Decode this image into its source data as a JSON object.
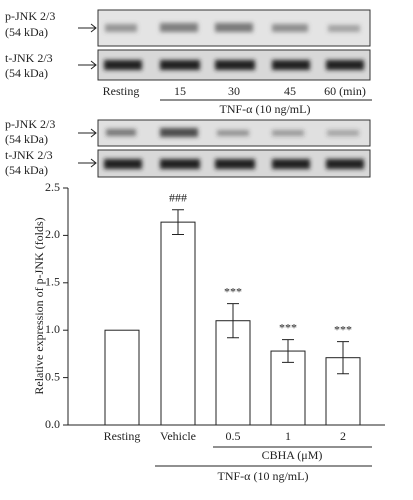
{
  "blots": [
    {
      "rows": [
        {
          "label": "p-JNK 2/3",
          "size": "(54 kDa)"
        },
        {
          "label": "t-JNK 2/3",
          "size": "(54 kDa)"
        }
      ],
      "lanes": [
        "Resting",
        "15",
        "30",
        "45",
        "60 (min)"
      ],
      "treatment": "TNF-α (10 ng/mL)"
    },
    {
      "rows": [
        {
          "label": "p-JNK 2/3",
          "size": "(54 kDa)"
        },
        {
          "label": "t-JNK 2/3",
          "size": "(54 kDa)"
        }
      ]
    }
  ],
  "chart_data": {
    "type": "bar",
    "y_label": "Relative expression of p-JNK (folds)",
    "categories": [
      "Resting",
      "Vehicle",
      "0.5",
      "1",
      "2"
    ],
    "values": [
      1.0,
      2.14,
      1.1,
      0.78,
      0.71
    ],
    "errors": [
      0,
      0.13,
      0.18,
      0.12,
      0.17
    ],
    "annotations": [
      null,
      "###",
      "***",
      "***",
      "***"
    ],
    "group_label": "CBHA (μM)",
    "treatment_label": "TNF-α (10 ng/mL)",
    "color": "#ffffff",
    "ylim": [
      0,
      2.5
    ],
    "yticks": [
      {
        "value": 0,
        "label": "0.0"
      },
      0.5,
      {
        "value": 1,
        "label": "1.0"
      },
      1.5,
      {
        "value": 2,
        "label": "2.0"
      },
      2.5
    ]
  }
}
